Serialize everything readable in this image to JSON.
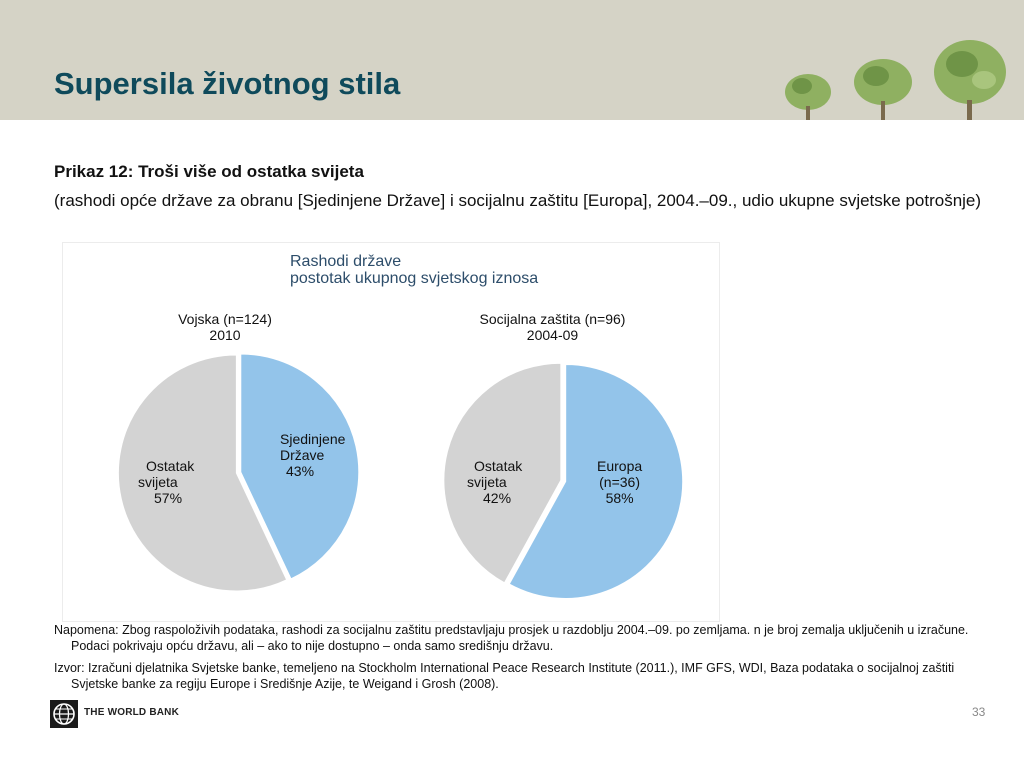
{
  "slide": {
    "title": "Supersila životnog stila",
    "prikaz": "Prikaz 12: Troši više od ostatka svijeta",
    "subtitle": "(rashodi opće države za obranu [Sjedinjene Države] i socijalnu zaštitu [Europa], 2004.–09., udio ukupne svjetske potrošnje)",
    "note": "Napomena: Zbog raspoloživih podataka, rashodi za socijalnu zaštitu predstavljaju prosjek u razdoblju 2004.–09. po zemljama. n je broj zemalja uključenih u izračune. Podaci pokrivaju opću državu, ali – ako to nije dostupno – onda samo središnju državu.",
    "source": "Izvor: Izračuni djelatnika Svjetske banke, temeljeno na Stockholm International Peace Research Institute (2011.), IMF GFS, WDI, Baza podataka o socijalnoj zaštiti Svjetske banke za regiju Europe i Središnje Azije, te Weigand i Grosh (2008).",
    "footer_logo_text": "THE WORLD BANK",
    "page_number": "33"
  },
  "chart_data": {
    "type": "pie",
    "heading": [
      "Rashodi države",
      "postotak ukupnog svjetskog iznosa"
    ],
    "colors": {
      "highlight": "#93c4ea",
      "rest": "#d3d3d3"
    },
    "pies": [
      {
        "title": [
          "Vojska (n=124)",
          "2010"
        ],
        "slices": [
          {
            "label": [
              "Sjedinjene",
              "Države",
              "43%"
            ],
            "value": 43,
            "color": "#93c4ea",
            "exploded": true
          },
          {
            "label": [
              "Ostatak",
              "svijeta",
              "57%"
            ],
            "value": 57,
            "color": "#d3d3d3",
            "exploded": false
          }
        ]
      },
      {
        "title": [
          "Socijalna zaštita (n=96)",
          "2004-09"
        ],
        "slices": [
          {
            "label": [
              "Europa",
              "(n=36)",
              "58%"
            ],
            "value": 58,
            "color": "#93c4ea",
            "exploded": true
          },
          {
            "label": [
              "Ostatak",
              "svijeta",
              "42%"
            ],
            "value": 42,
            "color": "#d3d3d3",
            "exploded": false
          }
        ]
      }
    ]
  }
}
